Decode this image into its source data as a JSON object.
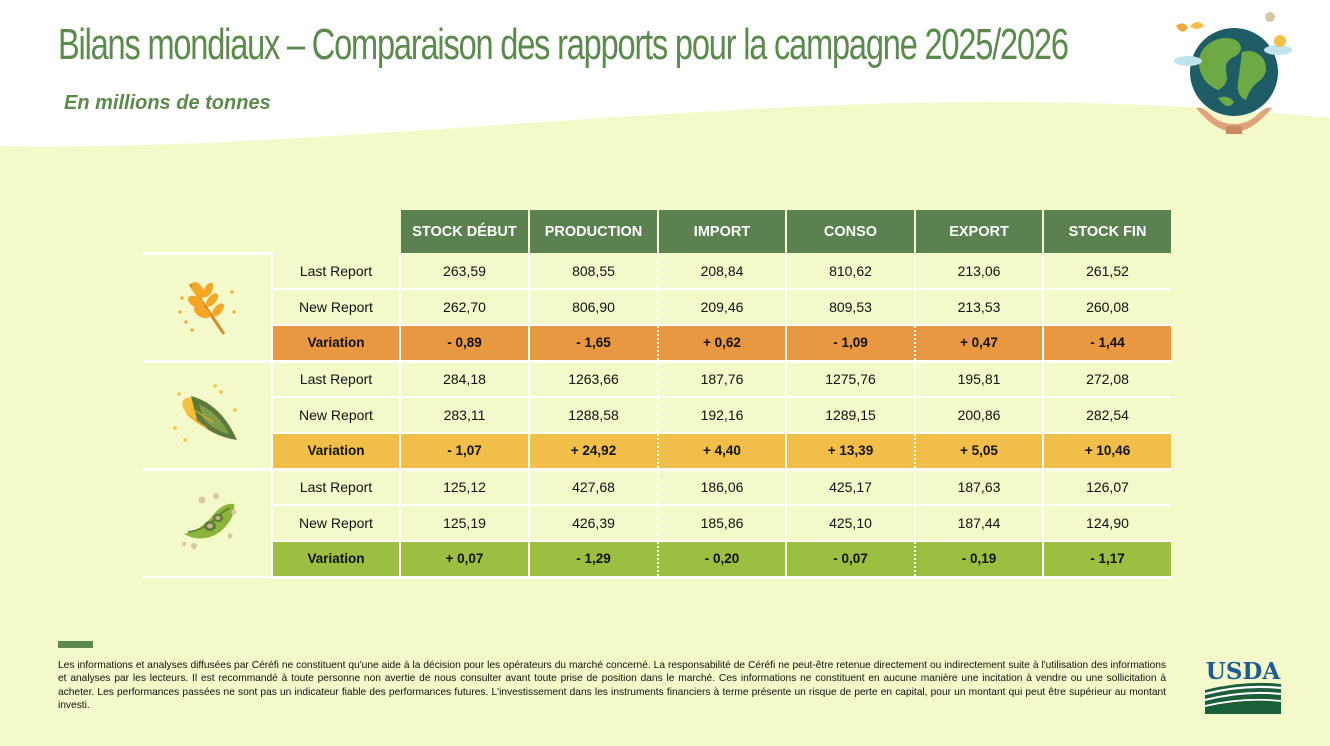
{
  "header": {
    "title": "Bilans mondiaux – Comparaison des rapports pour la campagne 2025/2026",
    "subtitle": "En millions de tonnes"
  },
  "table": {
    "columns": [
      "STOCK DÉBUT",
      "PRODUCTION",
      "IMPORT",
      "CONSO",
      "EXPORT",
      "STOCK FIN"
    ],
    "groups": [
      {
        "icon": "wheat-icon",
        "color": "#e99842",
        "rows": [
          {
            "label": "Last Report",
            "values": [
              "263,59",
              "808,55",
              "208,84",
              "810,62",
              "213,06",
              "261,52"
            ]
          },
          {
            "label": "New Report",
            "values": [
              "262,70",
              "806,90",
              "209,46",
              "809,53",
              "213,53",
              "260,08"
            ]
          },
          {
            "label": "Variation",
            "values": [
              "- 0,89",
              "- 1,65",
              "+ 0,62",
              "- 1,09",
              "+ 0,47",
              "- 1,44"
            ]
          }
        ]
      },
      {
        "icon": "corn-icon",
        "color": "#f1bf47",
        "rows": [
          {
            "label": "Last Report",
            "values": [
              "284,18",
              "1263,66",
              "187,76",
              "1275,76",
              "195,81",
              "272,08"
            ]
          },
          {
            "label": "New Report",
            "values": [
              "283,11",
              "1288,58",
              "192,16",
              "1289,15",
              "200,86",
              "282,54"
            ]
          },
          {
            "label": "Variation",
            "values": [
              "- 1,07",
              "+ 24,92",
              "+ 4,40",
              "+ 13,39",
              "+ 5,05",
              "+ 10,46"
            ]
          }
        ]
      },
      {
        "icon": "soybean-icon",
        "color": "#9cbf41",
        "rows": [
          {
            "label": "Last Report",
            "values": [
              "125,12",
              "427,68",
              "186,06",
              "425,17",
              "187,63",
              "126,07"
            ]
          },
          {
            "label": "New Report",
            "values": [
              "125,19",
              "426,39",
              "185,86",
              "425,10",
              "187,44",
              "124,90"
            ]
          },
          {
            "label": "Variation",
            "values": [
              "+ 0,07",
              "- 1,29",
              "- 0,20",
              "- 0,07",
              "- 0,19",
              "- 1,17"
            ]
          }
        ]
      }
    ]
  },
  "footer": {
    "disclaimer": "Les informations et analyses diffusées par Céréfi ne constituent qu'une aide à la décision pour les opérateurs du marché concerné. La responsabilité de Céréfi ne peut-être retenue directement ou indirectement suite à l'utilisation des informations et analyses par les lecteurs. Il est recommandé à toute personne non avertie de nous consulter avant toute prise de position dans le marché. Ces informations ne constituent en aucune manière une incitation à vendre ou une sollicitation à acheter. Les performances passées ne sont pas un indicateur fiable des performances futures. L'investissement dans les instruments financiers à terme présente un risque de perte en capital, pour un montant qui peut être supérieur au montant investi.",
    "logo_text": "USDA"
  },
  "colors": {
    "green": "#5b8150",
    "background": "#f3f9c9",
    "wheat": "#e99842",
    "corn": "#f1bf47",
    "soy": "#9cbf41"
  }
}
